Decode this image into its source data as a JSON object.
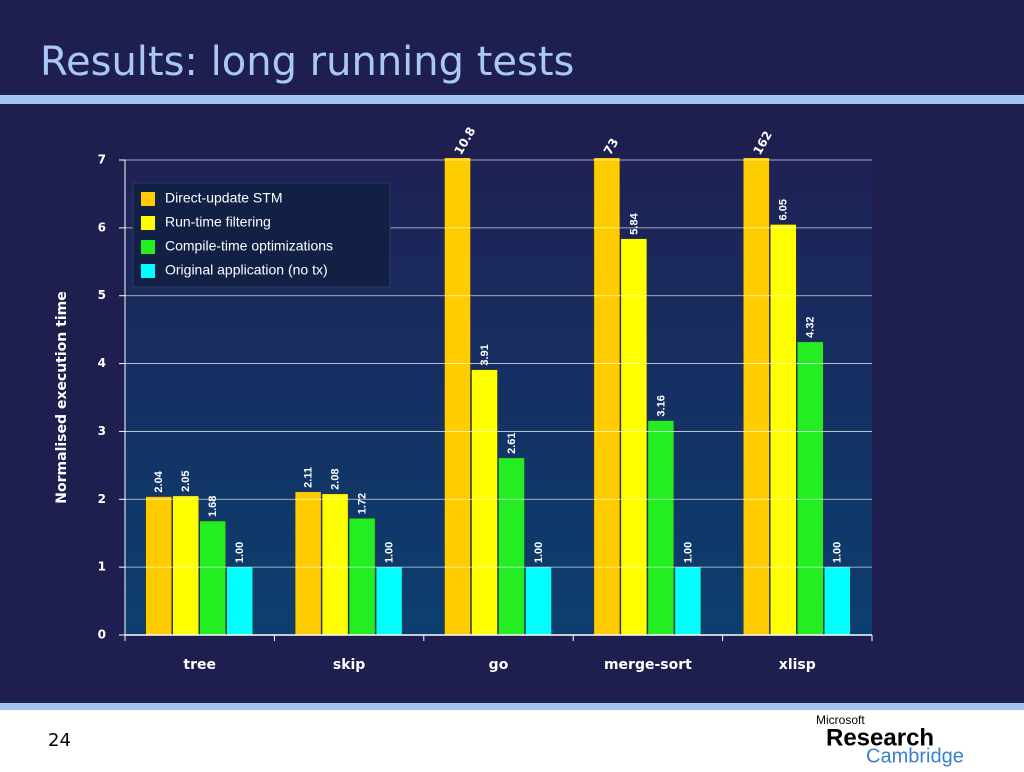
{
  "slide_title": "Results: long running tests",
  "page_number": "24",
  "logo": {
    "line1": "Microsoft",
    "line2": "Research",
    "line3": "Cambridge"
  },
  "chart_data": {
    "type": "bar",
    "ylabel": "Normalised execution time",
    "categories": [
      "tree",
      "skip",
      "go",
      "merge-sort",
      "xlisp"
    ],
    "series": [
      {
        "name": "Direct-update STM",
        "color": "#ffcc00",
        "values": [
          2.04,
          2.11,
          10.8,
          73,
          162
        ],
        "value_labels": [
          "2.04",
          "2.11",
          "10.8",
          "73",
          "162"
        ]
      },
      {
        "name": "Run-time filtering",
        "color": "#ffff00",
        "values": [
          2.05,
          2.08,
          3.91,
          5.84,
          6.05
        ],
        "value_labels": [
          "2.05",
          "2.08",
          "3.91",
          "5.84",
          "6.05"
        ]
      },
      {
        "name": "Compile-time optimizations",
        "color": "#22ee22",
        "values": [
          1.68,
          1.72,
          2.61,
          3.16,
          4.32
        ],
        "value_labels": [
          "1.68",
          "1.72",
          "2.61",
          "3.16",
          "4.32"
        ]
      },
      {
        "name": "Original application (no tx)",
        "color": "#00ffff",
        "values": [
          1,
          1,
          1,
          1,
          1
        ],
        "value_labels": [
          "1.00",
          "1.00",
          "1.00",
          "1.00",
          "1.00"
        ]
      }
    ],
    "ylim": [
      0,
      7
    ],
    "yticks": [
      0,
      1,
      2,
      3,
      4,
      5,
      6,
      7
    ],
    "grid": true,
    "legend": "upper-left"
  }
}
